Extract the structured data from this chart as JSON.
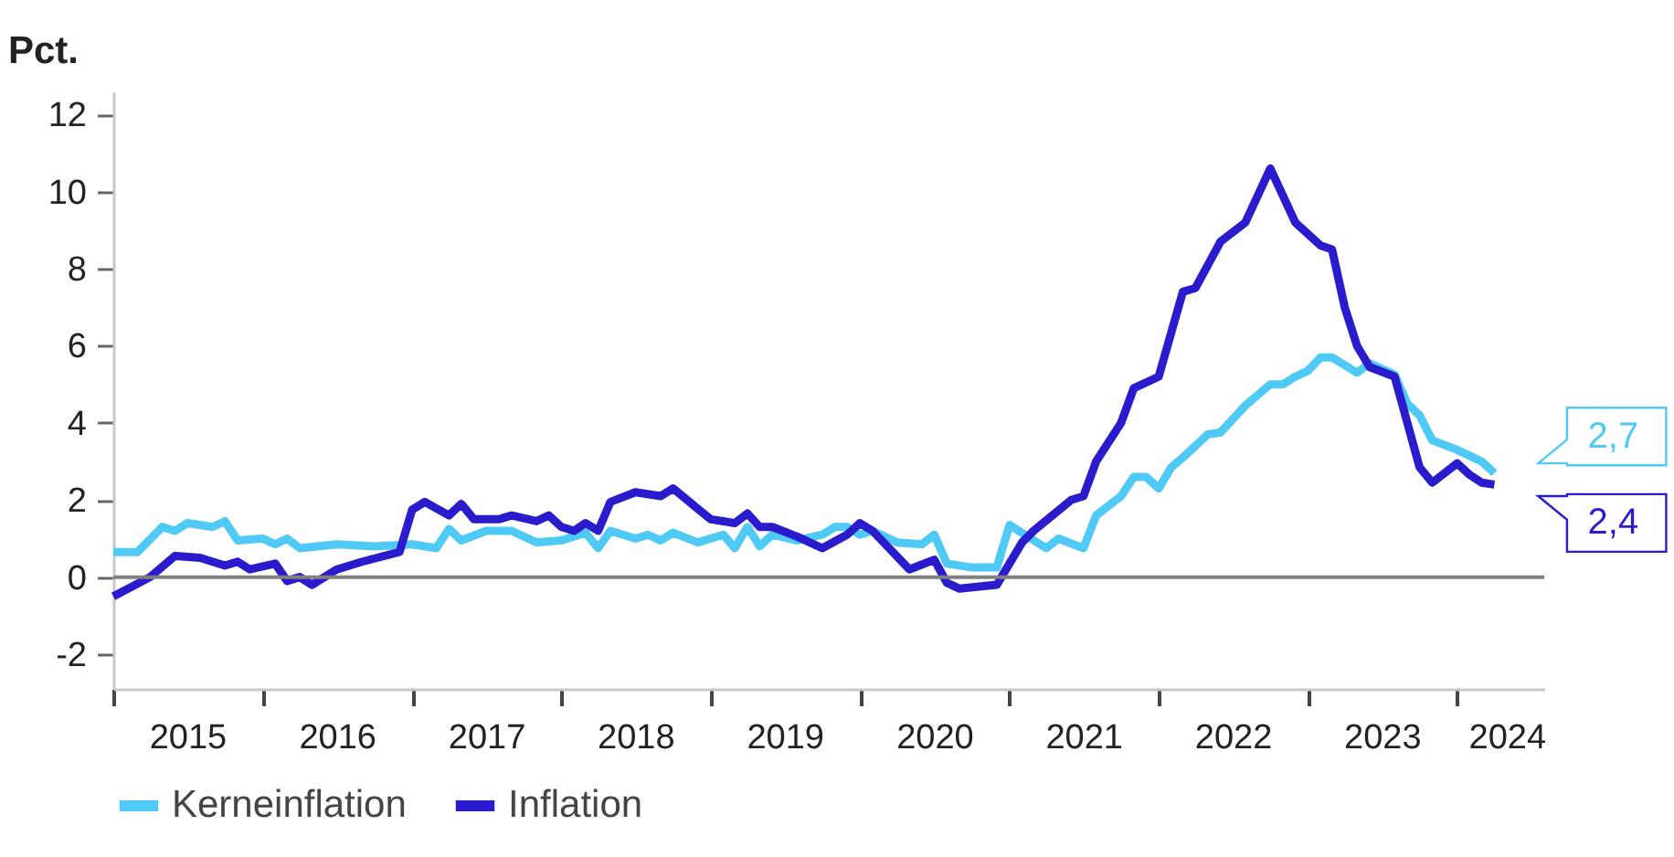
{
  "chart_data": {
    "type": "line",
    "ylabel": "Pct.",
    "xlim": [
      "2015-01",
      "2024-08"
    ],
    "ylim": [
      -2.9,
      12.6
    ],
    "xticks": [
      {
        "value": "2015-01",
        "label": null
      },
      {
        "value": "2016-01",
        "label": null
      },
      {
        "value": "2017-01",
        "label": null
      },
      {
        "value": "2018-01",
        "label": null
      },
      {
        "value": "2019-01",
        "label": null
      },
      {
        "value": "2020-01",
        "label": null
      },
      {
        "value": "2021-01",
        "label": null
      },
      {
        "value": "2022-01",
        "label": null
      },
      {
        "value": "2023-01",
        "label": null
      },
      {
        "value": "2024-01",
        "label": null
      },
      {
        "value": "2015-07",
        "label": "2015"
      },
      {
        "value": "2016-07",
        "label": "2016"
      },
      {
        "value": "2017-07",
        "label": "2017"
      },
      {
        "value": "2018-07",
        "label": "2018"
      },
      {
        "value": "2019-07",
        "label": "2019"
      },
      {
        "value": "2020-07",
        "label": "2020"
      },
      {
        "value": "2021-07",
        "label": "2021"
      },
      {
        "value": "2022-07",
        "label": "2022"
      },
      {
        "value": "2023-07",
        "label": "2023"
      },
      {
        "value": "2024-05",
        "label": "2024"
      }
    ],
    "yticks": [
      -2,
      0,
      2,
      4,
      6,
      8,
      10,
      12
    ],
    "grid": false,
    "legend": "bottom",
    "marker": "none",
    "line_style": "solid",
    "ref_lines": [
      {
        "axis": "y",
        "value": 0,
        "color": "#808080"
      }
    ],
    "annotations": [
      {
        "text": "2,7",
        "x": "2024-04",
        "y": 2.7
      },
      {
        "text": "2,4",
        "x": "2024-04",
        "y": 2.4
      }
    ],
    "series": [
      {
        "name": "Kerneinflation",
        "color": "#4fc9f5",
        "x": [
          "2015-01",
          "2015-03",
          "2015-05",
          "2015-06",
          "2015-07",
          "2015-09",
          "2015-10",
          "2015-11",
          "2016-01",
          "2016-02",
          "2016-03",
          "2016-04",
          "2016-07",
          "2016-10",
          "2017-01",
          "2017-03",
          "2017-04",
          "2017-05",
          "2017-07",
          "2017-09",
          "2017-11",
          "2018-01",
          "2018-03",
          "2018-04",
          "2018-05",
          "2018-07",
          "2018-08",
          "2018-09",
          "2018-10",
          "2018-12",
          "2019-02",
          "2019-03",
          "2019-04",
          "2019-05",
          "2019-06",
          "2019-08",
          "2019-10",
          "2019-11",
          "2019-12",
          "2020-01",
          "2020-02",
          "2020-04",
          "2020-06",
          "2020-07",
          "2020-08",
          "2020-10",
          "2020-12",
          "2021-01",
          "2021-04",
          "2021-05",
          "2021-07",
          "2021-08",
          "2021-10",
          "2021-11",
          "2021-12",
          "2022-01",
          "2022-02",
          "2022-03",
          "2022-05",
          "2022-06",
          "2022-08",
          "2022-10",
          "2022-11",
          "2022-12",
          "2023-01",
          "2023-02",
          "2023-03",
          "2023-05",
          "2023-06",
          "2023-08",
          "2023-09",
          "2023-10",
          "2023-11",
          "2024-01",
          "2024-03",
          "2024-04"
        ],
        "values": [
          0.65,
          0.65,
          1.3,
          1.2,
          1.4,
          1.3,
          1.45,
          0.95,
          1.0,
          0.85,
          1.0,
          0.75,
          0.85,
          0.8,
          0.85,
          0.75,
          1.25,
          0.95,
          1.2,
          1.2,
          0.9,
          0.95,
          1.15,
          0.75,
          1.2,
          1.0,
          1.1,
          0.95,
          1.15,
          0.9,
          1.1,
          0.75,
          1.3,
          0.8,
          1.1,
          0.95,
          1.1,
          1.3,
          1.3,
          1.1,
          1.2,
          0.9,
          0.85,
          1.1,
          0.35,
          0.25,
          0.25,
          1.35,
          0.75,
          1.0,
          0.75,
          1.6,
          2.1,
          2.6,
          2.6,
          2.3,
          2.85,
          3.1,
          3.7,
          3.75,
          4.45,
          5.0,
          5.0,
          5.2,
          5.35,
          5.7,
          5.7,
          5.3,
          5.55,
          5.25,
          4.5,
          4.2,
          3.55,
          3.3,
          3.0,
          2.7
        ]
      },
      {
        "name": "Inflation",
        "color": "#2a1ccc",
        "x": [
          "2015-01",
          "2015-04",
          "2015-06",
          "2015-08",
          "2015-10",
          "2015-11",
          "2015-12",
          "2016-02",
          "2016-03",
          "2016-04",
          "2016-05",
          "2016-07",
          "2016-09",
          "2016-12",
          "2017-01",
          "2017-02",
          "2017-04",
          "2017-05",
          "2017-06",
          "2017-08",
          "2017-09",
          "2017-11",
          "2017-12",
          "2018-01",
          "2018-02",
          "2018-03",
          "2018-04",
          "2018-05",
          "2018-07",
          "2018-09",
          "2018-10",
          "2019-01",
          "2019-02",
          "2019-03",
          "2019-04",
          "2019-05",
          "2019-06",
          "2019-08",
          "2019-10",
          "2019-12",
          "2020-01",
          "2020-02",
          "2020-05",
          "2020-07",
          "2020-08",
          "2020-09",
          "2020-12",
          "2021-02",
          "2021-03",
          "2021-06",
          "2021-07",
          "2021-08",
          "2021-10",
          "2021-11",
          "2022-01",
          "2022-03",
          "2022-04",
          "2022-06",
          "2022-08",
          "2022-10",
          "2022-12",
          "2023-02",
          "2023-03",
          "2023-04",
          "2023-05",
          "2023-06",
          "2023-08",
          "2023-10",
          "2023-11",
          "2024-01",
          "2024-02",
          "2024-03",
          "2024-04"
        ],
        "values": [
          -0.5,
          0.0,
          0.55,
          0.5,
          0.3,
          0.4,
          0.2,
          0.35,
          -0.1,
          0.0,
          -0.2,
          0.2,
          0.4,
          0.65,
          1.75,
          1.95,
          1.6,
          1.9,
          1.5,
          1.5,
          1.6,
          1.45,
          1.6,
          1.3,
          1.2,
          1.4,
          1.2,
          1.95,
          2.2,
          2.1,
          2.3,
          1.5,
          1.45,
          1.4,
          1.65,
          1.3,
          1.3,
          1.05,
          0.75,
          1.1,
          1.4,
          1.2,
          0.2,
          0.45,
          -0.15,
          -0.3,
          -0.2,
          0.9,
          1.2,
          2.0,
          2.1,
          3.0,
          4.0,
          4.9,
          5.2,
          7.4,
          7.5,
          8.7,
          9.2,
          10.6,
          9.2,
          8.6,
          8.5,
          7.0,
          6.0,
          5.45,
          5.2,
          2.85,
          2.45,
          2.95,
          2.65,
          2.45,
          2.4
        ]
      }
    ]
  }
}
